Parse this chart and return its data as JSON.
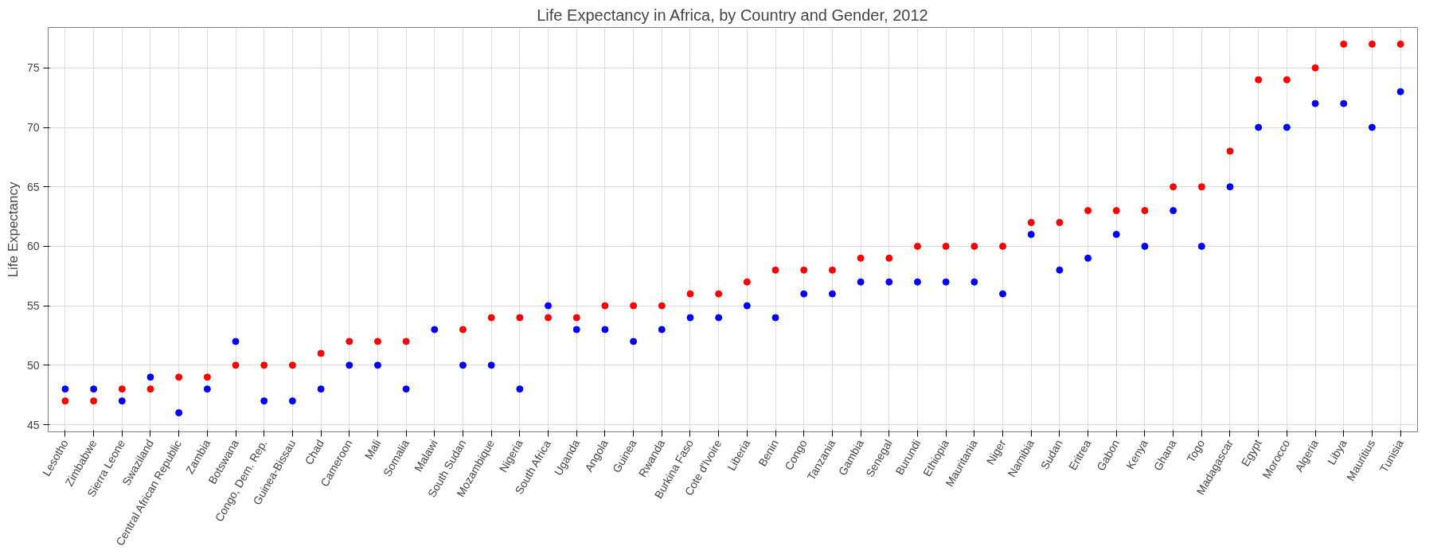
{
  "chart_data": {
    "type": "scatter",
    "title": "Life Expectancy in Africa, by Country and Gender, 2012",
    "ylabel": "Life Expectancy",
    "categories": [
      "Lesotho",
      "Zimbabwe",
      "Sierra Leone",
      "Swaziland",
      "Central African Republic",
      "Zambia",
      "Botswana",
      "Congo, Dem. Rep.",
      "Guinea-Bissau",
      "Chad",
      "Cameroon",
      "Mali",
      "Somalia",
      "Malawi",
      "South Sudan",
      "Mozambique",
      "Nigeria",
      "South Africa",
      "Uganda",
      "Angola",
      "Guinea",
      "Rwanda",
      "Burkina Faso",
      "Cote d'Ivoire",
      "Liberia",
      "Benin",
      "Congo",
      "Tanzania",
      "Gambia",
      "Senegal",
      "Burundi",
      "Ethiopia",
      "Mauritania",
      "Niger",
      "Namibia",
      "Sudan",
      "Eritrea",
      "Gabon",
      "Kenya",
      "Ghana",
      "Togo",
      "Madagascar",
      "Egypt",
      "Morocco",
      "Algeria",
      "Libya",
      "Mauritius",
      "Tunisia"
    ],
    "series": [
      {
        "color": "#ff0000",
        "values": [
          47,
          47,
          48,
          48,
          49,
          49,
          50,
          50,
          50,
          51,
          52,
          52,
          52,
          null,
          53,
          54,
          54,
          54,
          54,
          55,
          55,
          55,
          56,
          56,
          57,
          58,
          58,
          58,
          59,
          59,
          60,
          60,
          60,
          60,
          62,
          62,
          63,
          63,
          63,
          65,
          65,
          68,
          74,
          74,
          75,
          77,
          77,
          77
        ]
      },
      {
        "color": "#0000ff",
        "values": [
          48,
          48,
          47,
          49,
          46,
          48,
          52,
          47,
          47,
          48,
          50,
          50,
          48,
          53,
          50,
          50,
          48,
          55,
          53,
          53,
          52,
          53,
          54,
          54,
          55,
          54,
          56,
          56,
          57,
          57,
          57,
          57,
          57,
          56,
          61,
          58,
          59,
          61,
          60,
          63,
          60,
          65,
          70,
          70,
          72,
          72,
          70,
          73
        ]
      }
    ],
    "ylim": [
      44.4,
      78.4
    ],
    "yticks": [
      45,
      50,
      55,
      60,
      65,
      70,
      75
    ],
    "grid": true,
    "marker": "circle"
  }
}
